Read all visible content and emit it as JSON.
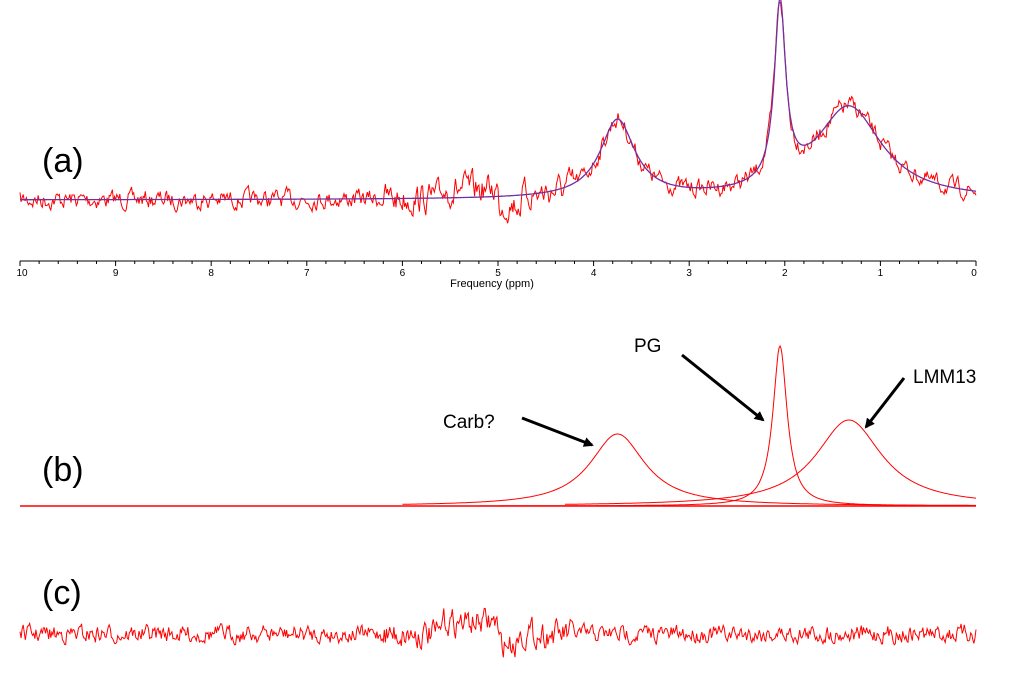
{
  "chart_data": [
    {
      "panel": "(a)",
      "type": "line",
      "xlabel": "Frequency (ppm)",
      "xlim": [
        10,
        0
      ],
      "x_reversed": true,
      "xticks": [
        10,
        9,
        8,
        7,
        6,
        5,
        4,
        3,
        2,
        1,
        0
      ],
      "grid": false,
      "series": [
        {
          "color": "#ff0000",
          "style": "noisy measured spectrum"
        },
        {
          "color": "#7030a0",
          "style": "smooth fit"
        }
      ],
      "peaks_ppm": [
        3.75,
        2.05,
        1.33
      ],
      "relative_heights": [
        0.38,
        1.0,
        0.45
      ]
    },
    {
      "panel": "(b)",
      "type": "line",
      "xlim": [
        10,
        0
      ],
      "x_reversed": true,
      "series": [
        {
          "name": "Carb?",
          "center_ppm": 3.75,
          "relative_height": 0.45,
          "width_ppm": 0.35,
          "color": "#ff0000"
        },
        {
          "name": "PG",
          "center_ppm": 2.05,
          "relative_height": 1.0,
          "width_ppm": 0.09,
          "color": "#ff0000"
        },
        {
          "name": "LMM13",
          "center_ppm": 1.33,
          "relative_height": 0.53,
          "width_ppm": 0.42,
          "color": "#ff0000"
        }
      ],
      "annotations": [
        "Carb?",
        "PG",
        "LMM13"
      ]
    },
    {
      "panel": "(c)",
      "type": "line",
      "xlim": [
        10,
        0
      ],
      "x_reversed": true,
      "series": [
        {
          "color": "#ff0000",
          "style": "residual noise"
        }
      ]
    }
  ],
  "colors": {
    "data": "#ff0000",
    "fit": "#7030a0",
    "arrow": "#000000"
  }
}
